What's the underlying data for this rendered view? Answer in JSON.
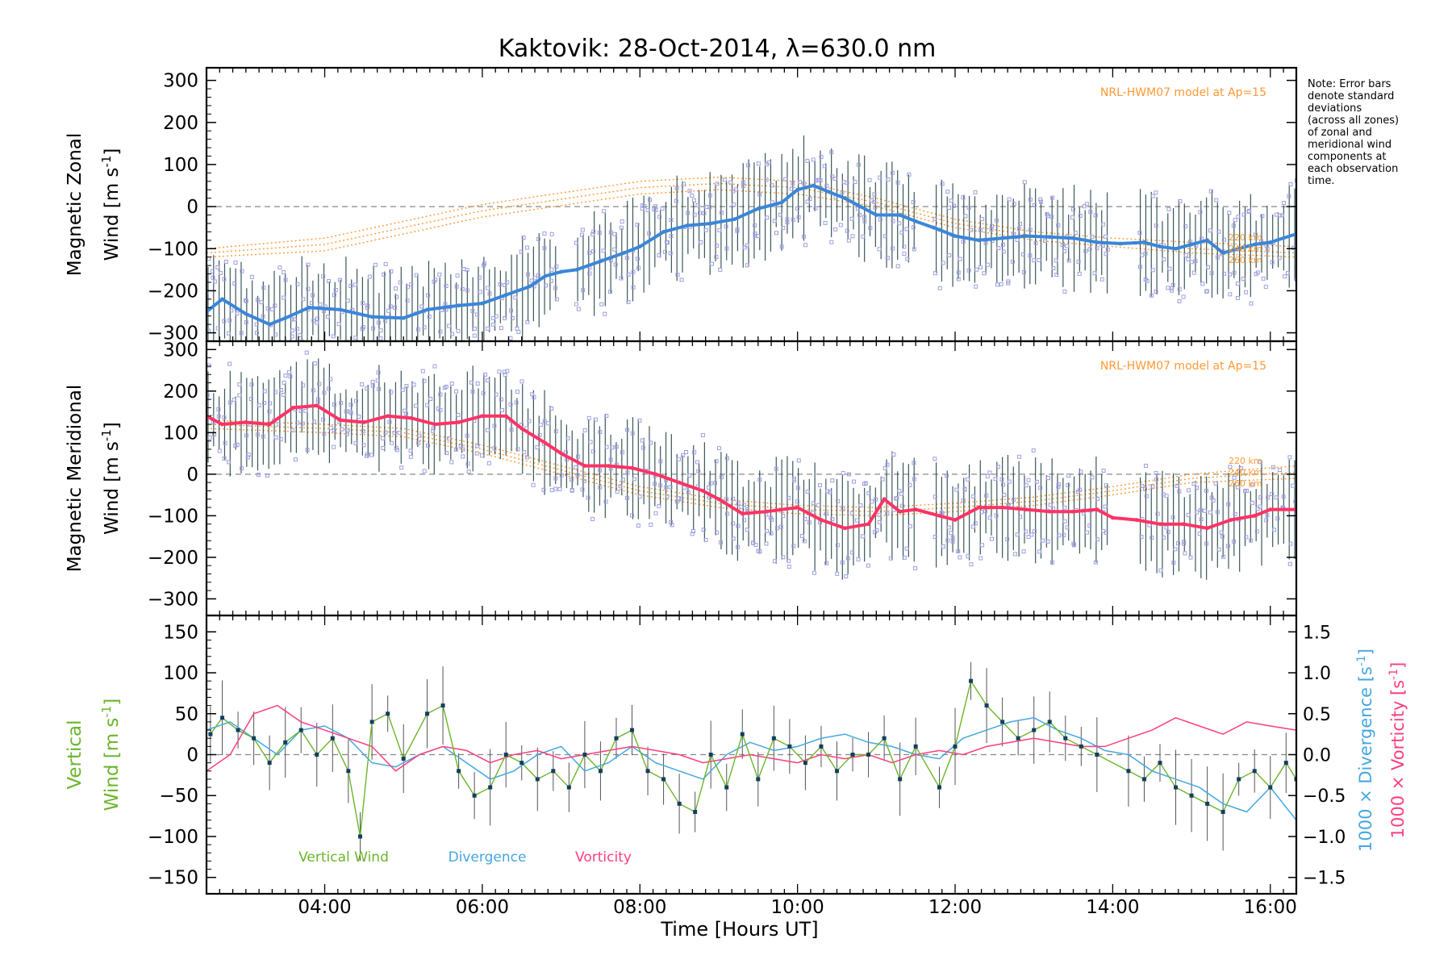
{
  "title": "Kaktovik: 28-Oct-2014, λ=630.0 nm",
  "note": [
    "Note: Error bars",
    "denote standard",
    "deviations",
    "(across all zones)",
    "of zonal and",
    "meridional wind",
    "components at",
    "each observation",
    "time."
  ],
  "x_label": "Time [Hours UT]",
  "colors": {
    "zonal_mean": "#3a86d8",
    "zonal_mean_dark": "#1f32d8",
    "meridional_mean": "#ff3366",
    "hwm_model": "#ff9933",
    "scatter_points": "#9e9ee0",
    "vertical_wind": "#6bb52b",
    "vertical_points": "#123f5e",
    "divergence": "#45a7df",
    "vorticity": "#ff3d7f",
    "error_bars": "#1a3a3a",
    "zero_line": "#888888"
  },
  "chart_data": [
    {
      "type": "line",
      "panel": "zonal",
      "ylabel_line1": "Magnetic Zonal",
      "ylabel_line2": "Wind [m s",
      "ylabel_sup": "-1",
      "ylabel_close": "]",
      "xlim": [
        2.5,
        16.33
      ],
      "ylim": [
        -320,
        330
      ],
      "x_ticks": [
        4,
        6,
        8,
        10,
        12,
        14,
        16
      ],
      "x_tick_labels": [
        "04:00",
        "06:00",
        "08:00",
        "10:00",
        "12:00",
        "14:00",
        "16:00"
      ],
      "y_ticks": [
        -300,
        -200,
        -100,
        0,
        100,
        200,
        300
      ],
      "y_tick_labels": [
        "−300",
        "−200",
        "−100",
        "0",
        "100",
        "200",
        "300"
      ],
      "model_label": "NRL-HWM07 model at Ap=15",
      "altitude_labels": [
        "220 km",
        "240 km",
        "260 km"
      ],
      "series": [
        {
          "name": "Magnetic Zonal Wind",
          "x": [
            2.5,
            2.7,
            3.0,
            3.3,
            3.5,
            3.8,
            4.2,
            4.6,
            5.0,
            5.3,
            5.7,
            6.0,
            6.3,
            6.6,
            6.8,
            7.0,
            7.2,
            7.5,
            7.8,
            8.0,
            8.3,
            8.6,
            8.9,
            9.2,
            9.5,
            9.8,
            10.0,
            10.2,
            10.4,
            10.6,
            10.8,
            11.0,
            11.3,
            11.5,
            11.8,
            12.0,
            12.3,
            12.6,
            12.9,
            13.2,
            13.5,
            13.8,
            14.1,
            14.4,
            14.6,
            14.8,
            15.0,
            15.2,
            15.4,
            15.6,
            15.8,
            16.0,
            16.33
          ],
          "values": [
            -250,
            -220,
            -255,
            -280,
            -265,
            -240,
            -245,
            -262,
            -265,
            -245,
            -235,
            -230,
            -210,
            -190,
            -165,
            -155,
            -150,
            -130,
            -110,
            -95,
            -60,
            -45,
            -40,
            -30,
            -5,
            10,
            40,
            50,
            35,
            20,
            0,
            -20,
            -20,
            -35,
            -55,
            -70,
            -80,
            -75,
            -70,
            -72,
            -75,
            -85,
            -88,
            -85,
            -95,
            -100,
            -90,
            -80,
            -110,
            -100,
            -90,
            -85,
            -65
          ]
        },
        {
          "name": "HWM 220 km",
          "x": [
            2.5,
            4,
            6,
            8,
            9,
            10,
            11,
            12,
            13,
            14,
            15,
            16.33
          ],
          "values": [
            -100,
            -75,
            5,
            60,
            70,
            60,
            20,
            -30,
            -60,
            -75,
            -85,
            -95
          ]
        },
        {
          "name": "HWM 240 km",
          "x": [
            2.5,
            4,
            6,
            8,
            9,
            10,
            11,
            12,
            13,
            14,
            15,
            16.33
          ],
          "values": [
            -110,
            -90,
            -10,
            45,
            55,
            45,
            10,
            -40,
            -70,
            -85,
            -100,
            -110
          ]
        },
        {
          "name": "HWM 260 km",
          "x": [
            2.5,
            4,
            6,
            8,
            9,
            10,
            11,
            12,
            13,
            14,
            15,
            16.33
          ],
          "values": [
            -120,
            -105,
            -25,
            30,
            40,
            30,
            0,
            -50,
            -80,
            -95,
            -110,
            -120
          ]
        }
      ]
    },
    {
      "type": "line",
      "panel": "meridional",
      "ylabel_line1": "Magnetic Meridional",
      "ylabel_line2": "Wind [m s",
      "ylabel_sup": "-1",
      "ylabel_close": "]",
      "xlim": [
        2.5,
        16.33
      ],
      "ylim": [
        -340,
        320
      ],
      "y_ticks": [
        -300,
        -200,
        -100,
        0,
        100,
        200,
        300
      ],
      "y_tick_labels": [
        "−300",
        "−200",
        "−100",
        "0",
        "100",
        "200",
        "300"
      ],
      "model_label": "NRL-HWM07 model at Ap=15",
      "altitude_labels": [
        "220 km",
        "240 km",
        "260 km"
      ],
      "series": [
        {
          "name": "Magnetic Meridional Wind",
          "x": [
            2.5,
            2.7,
            3.0,
            3.3,
            3.6,
            3.9,
            4.2,
            4.5,
            4.8,
            5.1,
            5.4,
            5.7,
            6.0,
            6.3,
            6.5,
            6.8,
            7.0,
            7.3,
            7.6,
            7.9,
            8.2,
            8.5,
            8.8,
            9.0,
            9.3,
            9.6,
            10.0,
            10.3,
            10.6,
            10.9,
            11.1,
            11.3,
            11.5,
            11.8,
            12.0,
            12.3,
            12.6,
            12.9,
            13.2,
            13.5,
            13.8,
            14.0,
            14.3,
            14.6,
            14.9,
            15.2,
            15.5,
            15.8,
            16.0,
            16.33
          ],
          "values": [
            140,
            120,
            125,
            120,
            160,
            165,
            130,
            125,
            140,
            135,
            120,
            125,
            140,
            140,
            110,
            75,
            50,
            20,
            20,
            15,
            0,
            -20,
            -40,
            -60,
            -95,
            -90,
            -80,
            -110,
            -130,
            -120,
            -60,
            -90,
            -85,
            -100,
            -110,
            -80,
            -80,
            -85,
            -90,
            -90,
            -85,
            -105,
            -110,
            -120,
            -120,
            -130,
            -110,
            -100,
            -85,
            -85
          ]
        },
        {
          "name": "HWM 220 km",
          "x": [
            2.5,
            4,
            5,
            6,
            7,
            8,
            9,
            10,
            11,
            12,
            13,
            14,
            15,
            16.33
          ],
          "values": [
            130,
            120,
            110,
            70,
            20,
            -30,
            -60,
            -75,
            -80,
            -70,
            -55,
            -30,
            0,
            20
          ]
        },
        {
          "name": "HWM 240 km",
          "x": [
            2.5,
            4,
            5,
            6,
            7,
            8,
            9,
            10,
            11,
            12,
            13,
            14,
            15,
            16.33
          ],
          "values": [
            120,
            110,
            100,
            60,
            10,
            -40,
            -70,
            -85,
            -90,
            -80,
            -65,
            -40,
            -10,
            5
          ]
        },
        {
          "name": "HWM 260 km",
          "x": [
            2.5,
            4,
            5,
            6,
            7,
            8,
            9,
            10,
            11,
            12,
            13,
            14,
            15,
            16.33
          ],
          "values": [
            110,
            100,
            90,
            50,
            0,
            -50,
            -80,
            -95,
            -100,
            -90,
            -75,
            -50,
            -20,
            -10
          ]
        }
      ]
    },
    {
      "type": "line",
      "panel": "vertical",
      "ylabel_line1": "Vertical",
      "ylabel_line2": "Wind [m s",
      "ylabel_sup": "-1",
      "ylabel_close": "]",
      "xlim": [
        2.5,
        16.33
      ],
      "ylim": [
        -170,
        170
      ],
      "y_ticks": [
        -150,
        -100,
        -50,
        0,
        50,
        100,
        150
      ],
      "y_tick_labels": [
        "−150",
        "−100",
        "−50",
        "0",
        "50",
        "100",
        "150"
      ],
      "right_axis": {
        "ylim": [
          -1.7,
          1.7
        ],
        "ticks": [
          -1.5,
          -1.0,
          -0.5,
          0.0,
          0.5,
          1.0,
          1.5
        ],
        "tick_labels": [
          "−1.5",
          "−1.0",
          "−0.5",
          "0.0",
          "0.5",
          "1.0",
          "1.5"
        ],
        "divergence_label": "1000 × Divergence [s",
        "vorticity_label": "1000 × Vorticity [s",
        "sup": "-1",
        "close": "]"
      },
      "legend": [
        "Vertical Wind",
        "Divergence",
        "Vorticity"
      ],
      "series": [
        {
          "name": "Vertical Wind",
          "x": [
            2.55,
            2.7,
            2.9,
            3.1,
            3.3,
            3.5,
            3.7,
            3.9,
            4.1,
            4.3,
            4.45,
            4.6,
            4.8,
            5.0,
            5.3,
            5.5,
            5.7,
            5.9,
            6.1,
            6.3,
            6.5,
            6.7,
            6.9,
            7.1,
            7.3,
            7.5,
            7.7,
            7.9,
            8.1,
            8.3,
            8.5,
            8.7,
            8.9,
            9.1,
            9.3,
            9.5,
            9.7,
            9.9,
            10.1,
            10.3,
            10.5,
            10.7,
            10.9,
            11.1,
            11.3,
            11.5,
            11.8,
            12.0,
            12.2,
            12.4,
            12.6,
            12.8,
            13.0,
            13.2,
            13.4,
            13.6,
            13.8,
            14.2,
            14.4,
            14.6,
            14.8,
            15.0,
            15.2,
            15.4,
            15.6,
            15.8,
            16.0,
            16.2,
            16.33
          ],
          "values": [
            25,
            45,
            30,
            20,
            -10,
            15,
            30,
            0,
            20,
            -20,
            -100,
            40,
            50,
            -5,
            50,
            60,
            -20,
            -50,
            -40,
            0,
            -10,
            -30,
            -20,
            -40,
            0,
            -20,
            20,
            30,
            -20,
            -30,
            -60,
            -70,
            0,
            -40,
            25,
            -30,
            20,
            10,
            -10,
            10,
            -20,
            0,
            0,
            20,
            -30,
            10,
            -40,
            10,
            90,
            60,
            40,
            20,
            30,
            40,
            20,
            10,
            0,
            -20,
            -30,
            -10,
            -40,
            -50,
            -60,
            -70,
            -30,
            -20,
            -40,
            -10,
            -30
          ]
        },
        {
          "name": "Divergence",
          "x": [
            2.5,
            2.8,
            3.1,
            3.4,
            3.7,
            4.0,
            4.3,
            4.6,
            4.9,
            5.2,
            5.5,
            5.8,
            6.1,
            6.4,
            6.7,
            7.0,
            7.3,
            7.6,
            7.9,
            8.2,
            8.5,
            8.8,
            9.1,
            9.4,
            9.7,
            10.0,
            10.3,
            10.6,
            10.9,
            11.2,
            11.5,
            11.8,
            12.1,
            12.4,
            12.7,
            13.0,
            13.3,
            13.6,
            13.9,
            14.2,
            14.5,
            14.8,
            15.1,
            15.4,
            15.7,
            16.0,
            16.33
          ],
          "values": [
            0.3,
            0.4,
            0.2,
            0.0,
            0.3,
            0.35,
            0.2,
            -0.1,
            -0.15,
            0.0,
            0.1,
            -0.1,
            -0.3,
            -0.2,
            0.0,
            0.1,
            -0.2,
            -0.1,
            0.1,
            -0.1,
            -0.2,
            -0.3,
            0.0,
            0.15,
            0.05,
            0.1,
            0.2,
            0.25,
            0.15,
            0.1,
            0.0,
            -0.05,
            0.2,
            0.3,
            0.4,
            0.45,
            0.3,
            0.2,
            0.05,
            0.0,
            -0.2,
            -0.3,
            -0.4,
            -0.6,
            -0.7,
            -0.4,
            -0.8
          ]
        },
        {
          "name": "Vorticity",
          "x": [
            2.5,
            2.8,
            3.1,
            3.4,
            3.7,
            4.0,
            4.3,
            4.6,
            4.9,
            5.2,
            5.5,
            5.8,
            6.1,
            6.4,
            6.7,
            7.0,
            7.3,
            7.6,
            7.9,
            8.2,
            8.5,
            8.8,
            9.1,
            9.4,
            9.7,
            10.0,
            10.3,
            10.6,
            10.9,
            11.2,
            11.5,
            11.8,
            12.1,
            12.4,
            12.7,
            13.0,
            13.3,
            13.6,
            13.9,
            14.2,
            14.5,
            14.8,
            15.1,
            15.4,
            15.7,
            16.0,
            16.33
          ],
          "values": [
            -0.2,
            0.0,
            0.5,
            0.6,
            0.4,
            0.3,
            0.2,
            0.1,
            -0.2,
            0.0,
            0.1,
            0.05,
            -0.1,
            0.0,
            0.05,
            -0.05,
            0.0,
            0.05,
            0.1,
            0.05,
            0.0,
            -0.1,
            -0.05,
            0.0,
            -0.05,
            -0.1,
            0.0,
            -0.05,
            0.0,
            -0.1,
            0.0,
            0.05,
            0.0,
            0.1,
            0.15,
            0.2,
            0.15,
            0.1,
            0.1,
            0.2,
            0.3,
            0.45,
            0.35,
            0.25,
            0.4,
            0.35,
            0.3
          ]
        }
      ]
    }
  ]
}
